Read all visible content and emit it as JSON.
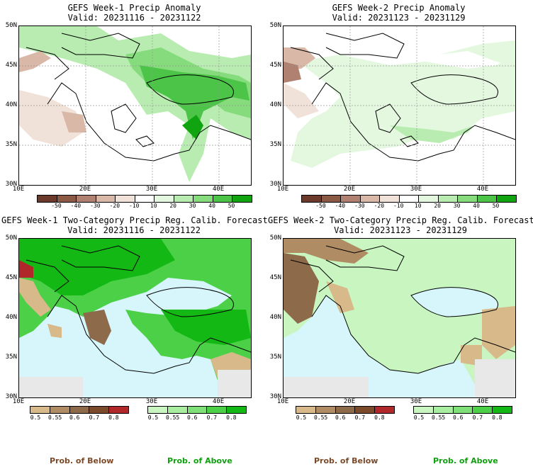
{
  "panels": [
    {
      "title": "GEFS Week-1 Precip Anomaly",
      "valid": "Valid: 20231116 - 20231122"
    },
    {
      "title": "GEFS Week-2 Precip Anomaly",
      "valid": "Valid: 20231123 - 20231129"
    },
    {
      "title": "GEFS Week-1 Two-Category Precip Reg. Calib. Forecast",
      "valid": "Valid: 20231116 - 20231122"
    },
    {
      "title": "GEFS Week-2 Two-Category Precip Reg. Calib. Forecast",
      "valid": "Valid: 20231123 - 20231129"
    }
  ],
  "axes": {
    "lat_labels": [
      "50N",
      "45N",
      "40N",
      "35N",
      "30N"
    ],
    "lon_labels": [
      "10E",
      "20E",
      "30E",
      "40E"
    ]
  },
  "anomaly_colorbar": {
    "labels": [
      "-50",
      "-40",
      "-30",
      "-20",
      "-10",
      "10",
      "20",
      "30",
      "40",
      "50"
    ],
    "colors": [
      "#6b3a2a",
      "#8c5a44",
      "#b08070",
      "#d9b8a8",
      "#f0e2d8",
      "#ffffff",
      "#e4f8e0",
      "#b8ecb0",
      "#86dc7c",
      "#4cc448",
      "#10a410"
    ]
  },
  "prob_colorbar": {
    "labels": [
      "0.5",
      "0.55",
      "0.6",
      "0.7",
      "0.8"
    ],
    "below_colors": [
      "#d7b98a",
      "#b08c64",
      "#8c6a4a",
      "#7a4a2a",
      "#b0282a"
    ],
    "above_colors": [
      "#c8f5c0",
      "#a8eda0",
      "#7ee076",
      "#4cd048",
      "#14b814"
    ]
  },
  "legend": {
    "below_label": "Prob. of Below",
    "above_label": "Prob. of Above",
    "below_color": "#7a4a2a",
    "above_color": "#10a010"
  }
}
